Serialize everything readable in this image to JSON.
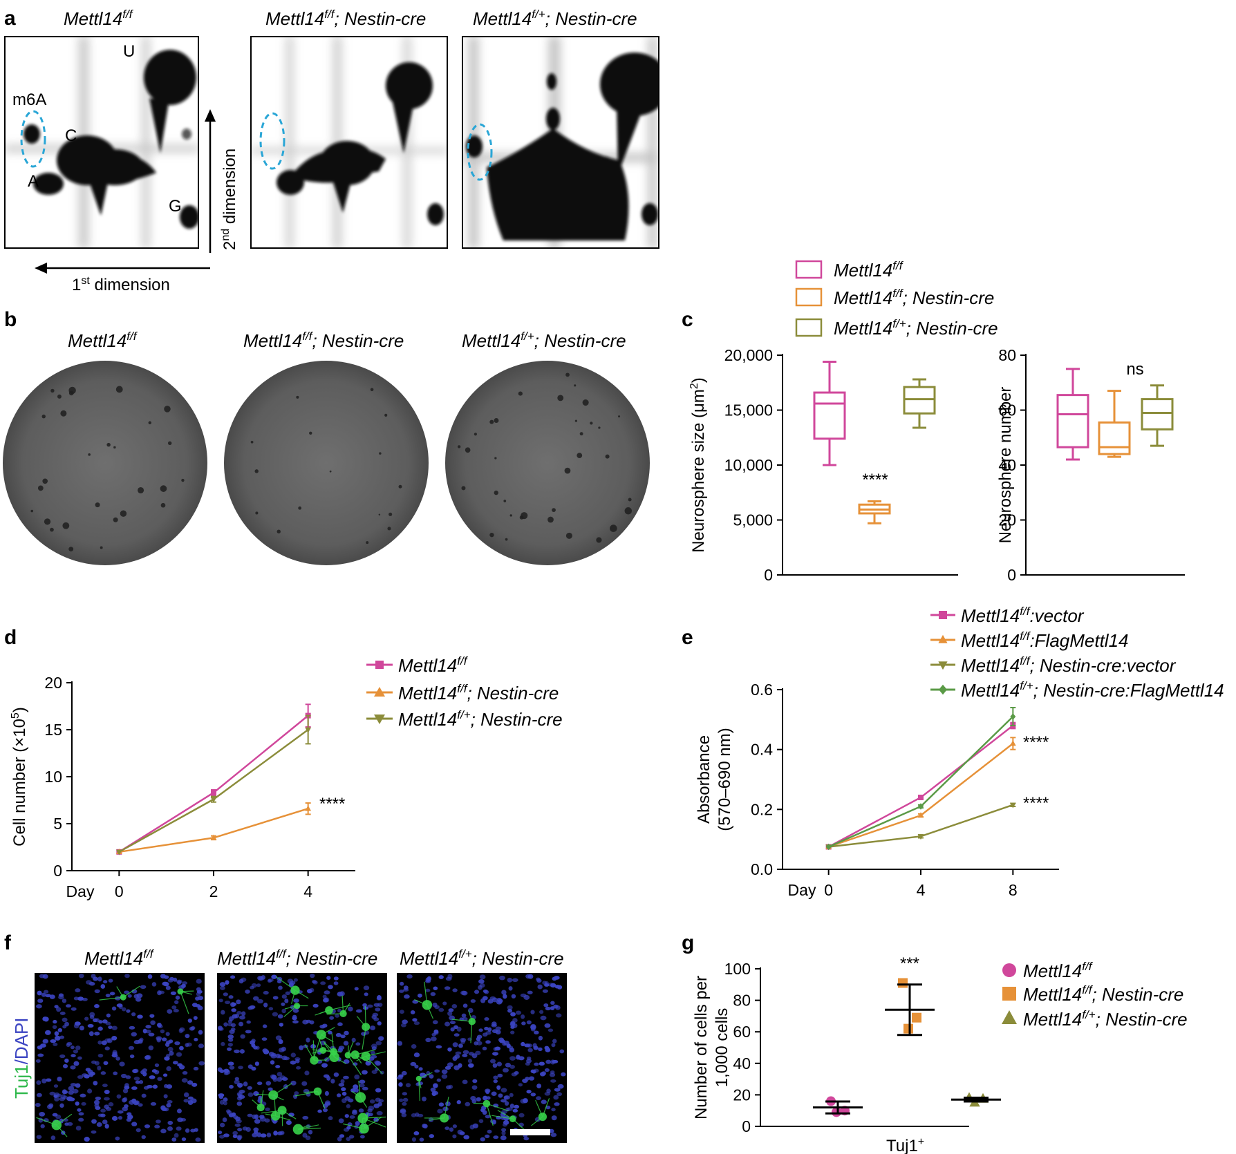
{
  "panel_labels": {
    "a": "a",
    "b": "b",
    "c": "c",
    "d": "d",
    "e": "e",
    "f": "f",
    "g": "g"
  },
  "genotypes": {
    "ff": {
      "base": "Mettl14",
      "sup": "f/f",
      "rest": ""
    },
    "ff_cre": {
      "base": "Mettl14",
      "sup": "f/f",
      "rest": "; Nestin-cre"
    },
    "fp_cre": {
      "base": "Mettl14",
      "sup": "f/+",
      "rest": "; Nestin-cre"
    }
  },
  "panel_a": {
    "spot_labels": {
      "U": "U",
      "m6A": "m6A",
      "C": "C",
      "A": "A",
      "G": "G"
    },
    "axis1": {
      "base": "1",
      "sup": "st",
      "rest": " dimension"
    },
    "axis2": {
      "base": "2",
      "sup": "nd",
      "rest": " dimension"
    }
  },
  "panel_f": {
    "stain_green": "Tuj1",
    "stain_blue": "/DAPI"
  },
  "colors": {
    "pink": "#d0479b",
    "orange": "#e69138",
    "olive": "#8b8c3a",
    "green": "#5a9a46",
    "cyan": "#2aa6d6",
    "nucleus": "#3b44c2",
    "neuron": "#37d24a"
  },
  "chart_data": [
    {
      "id": "c-left",
      "type": "box",
      "ylabel": "Neurosphere size (μm",
      "ylabel_sup": "2",
      "ylabel_end": ")",
      "ylim": [
        0,
        20000
      ],
      "yticks": [
        0,
        5000,
        10000,
        15000,
        20000
      ],
      "ytick_labels": [
        "0",
        "5,000",
        "10,000",
        "15,000",
        "20,000"
      ],
      "annotation": "****",
      "series": [
        {
          "genotype": "ff",
          "color": "pink",
          "min": 10000,
          "q1": 12400,
          "median": 15600,
          "q3": 16600,
          "max": 19400
        },
        {
          "genotype": "ff_cre",
          "color": "orange",
          "min": 4700,
          "q1": 5600,
          "median": 5950,
          "q3": 6400,
          "max": 6700
        },
        {
          "genotype": "fp_cre",
          "color": "olive",
          "min": 13400,
          "q1": 14700,
          "median": 16000,
          "q3": 17100,
          "max": 17800
        }
      ]
    },
    {
      "id": "c-right",
      "type": "box",
      "ylabel": "Neurosphere number",
      "ylim": [
        0,
        80
      ],
      "yticks": [
        0,
        20,
        40,
        60,
        80
      ],
      "ytick_labels": [
        "0",
        "20",
        "40",
        "60",
        "80"
      ],
      "annotation": "ns",
      "series": [
        {
          "genotype": "ff",
          "color": "pink",
          "min": 42,
          "q1": 46.5,
          "median": 58.5,
          "q3": 65.5,
          "max": 75
        },
        {
          "genotype": "ff_cre",
          "color": "orange",
          "min": 43,
          "q1": 44,
          "median": 46.5,
          "q3": 55.5,
          "max": 67
        },
        {
          "genotype": "fp_cre",
          "color": "olive",
          "min": 47,
          "q1": 53,
          "median": 59,
          "q3": 64,
          "max": 69
        }
      ]
    },
    {
      "id": "d",
      "type": "line",
      "ylabel": "Cell number (×10",
      "ylabel_sup": "5",
      "ylabel_end": ")",
      "xlabel_prefix": "Day",
      "x": [
        0,
        2,
        4
      ],
      "xlim": [
        -1,
        5
      ],
      "ylim": [
        0,
        20
      ],
      "yticks": [
        0,
        5,
        10,
        15,
        20
      ],
      "annotation": "****",
      "series": [
        {
          "genotype": "ff",
          "color": "pink",
          "marker": "square",
          "values": [
            2,
            8.3,
            16.5
          ],
          "err": [
            0,
            0.3,
            1.2
          ]
        },
        {
          "genotype": "ff_cre",
          "color": "orange",
          "marker": "triangle",
          "values": [
            2,
            3.5,
            6.6
          ],
          "err": [
            0,
            0.2,
            0.6
          ]
        },
        {
          "genotype": "fp_cre",
          "color": "olive",
          "marker": "tri-down",
          "values": [
            2,
            7.6,
            15
          ],
          "err": [
            0,
            0.3,
            1.5
          ]
        }
      ]
    },
    {
      "id": "e",
      "type": "line",
      "ylabel": "Absorbance",
      "ylabel2": "(570–690 nm)",
      "xlabel_prefix": "Day",
      "x": [
        0,
        4,
        8
      ],
      "xlim": [
        -2,
        10
      ],
      "ylim": [
        0,
        0.6
      ],
      "yticks": [
        0,
        0.2,
        0.4,
        0.6
      ],
      "ytick_labels": [
        "0.0",
        "0.2",
        "0.4",
        "0.6"
      ],
      "annotations": [
        "****",
        "****"
      ],
      "series": [
        {
          "name": {
            "base": "Mettl14",
            "sup": "f/f",
            "rest": ":vector"
          },
          "color": "pink",
          "marker": "square",
          "values": [
            0.075,
            0.24,
            0.48
          ],
          "err": [
            0,
            0.005,
            0.01
          ]
        },
        {
          "name": {
            "base": "Mettl14",
            "sup": "f/f",
            "rest": ":FlagMettl14"
          },
          "color": "orange",
          "marker": "triangle",
          "values": [
            0.075,
            0.18,
            0.42
          ],
          "err": [
            0,
            0.005,
            0.02
          ]
        },
        {
          "name": {
            "base": "Mettl14",
            "sup": "f/f",
            "rest": "; Nestin-cre:vector"
          },
          "color": "olive",
          "marker": "tri-down",
          "values": [
            0.075,
            0.11,
            0.215
          ],
          "err": [
            0,
            0.005,
            0.005
          ]
        },
        {
          "name": {
            "base": "Mettl14",
            "sup": "f/+",
            "rest": "; Nestin-cre:FlagMettl14"
          },
          "color": "green",
          "marker": "diamond",
          "values": [
            0.075,
            0.21,
            0.51
          ],
          "err": [
            0,
            0.005,
            0.03
          ]
        }
      ]
    },
    {
      "id": "g",
      "type": "scatter",
      "ylabel": "Number of cells per",
      "ylabel2": "1,000 cells",
      "xlabel": "Tuj1",
      "xlabel_sup": "+",
      "ylim": [
        0,
        100
      ],
      "yticks": [
        0,
        20,
        40,
        60,
        80,
        100
      ],
      "annotation": "***",
      "series": [
        {
          "genotype": "ff",
          "color": "pink",
          "marker": "circle",
          "points": [
            16,
            9,
            10
          ],
          "mean": 12,
          "sd": 3.8
        },
        {
          "genotype": "ff_cre",
          "color": "orange",
          "marker": "square",
          "points": [
            91,
            62,
            69
          ],
          "mean": 74,
          "sd": 16
        },
        {
          "genotype": "fp_cre",
          "color": "olive",
          "marker": "triangle",
          "points": [
            18,
            15,
            17.5
          ],
          "mean": 17,
          "sd": 1.2
        }
      ]
    }
  ]
}
